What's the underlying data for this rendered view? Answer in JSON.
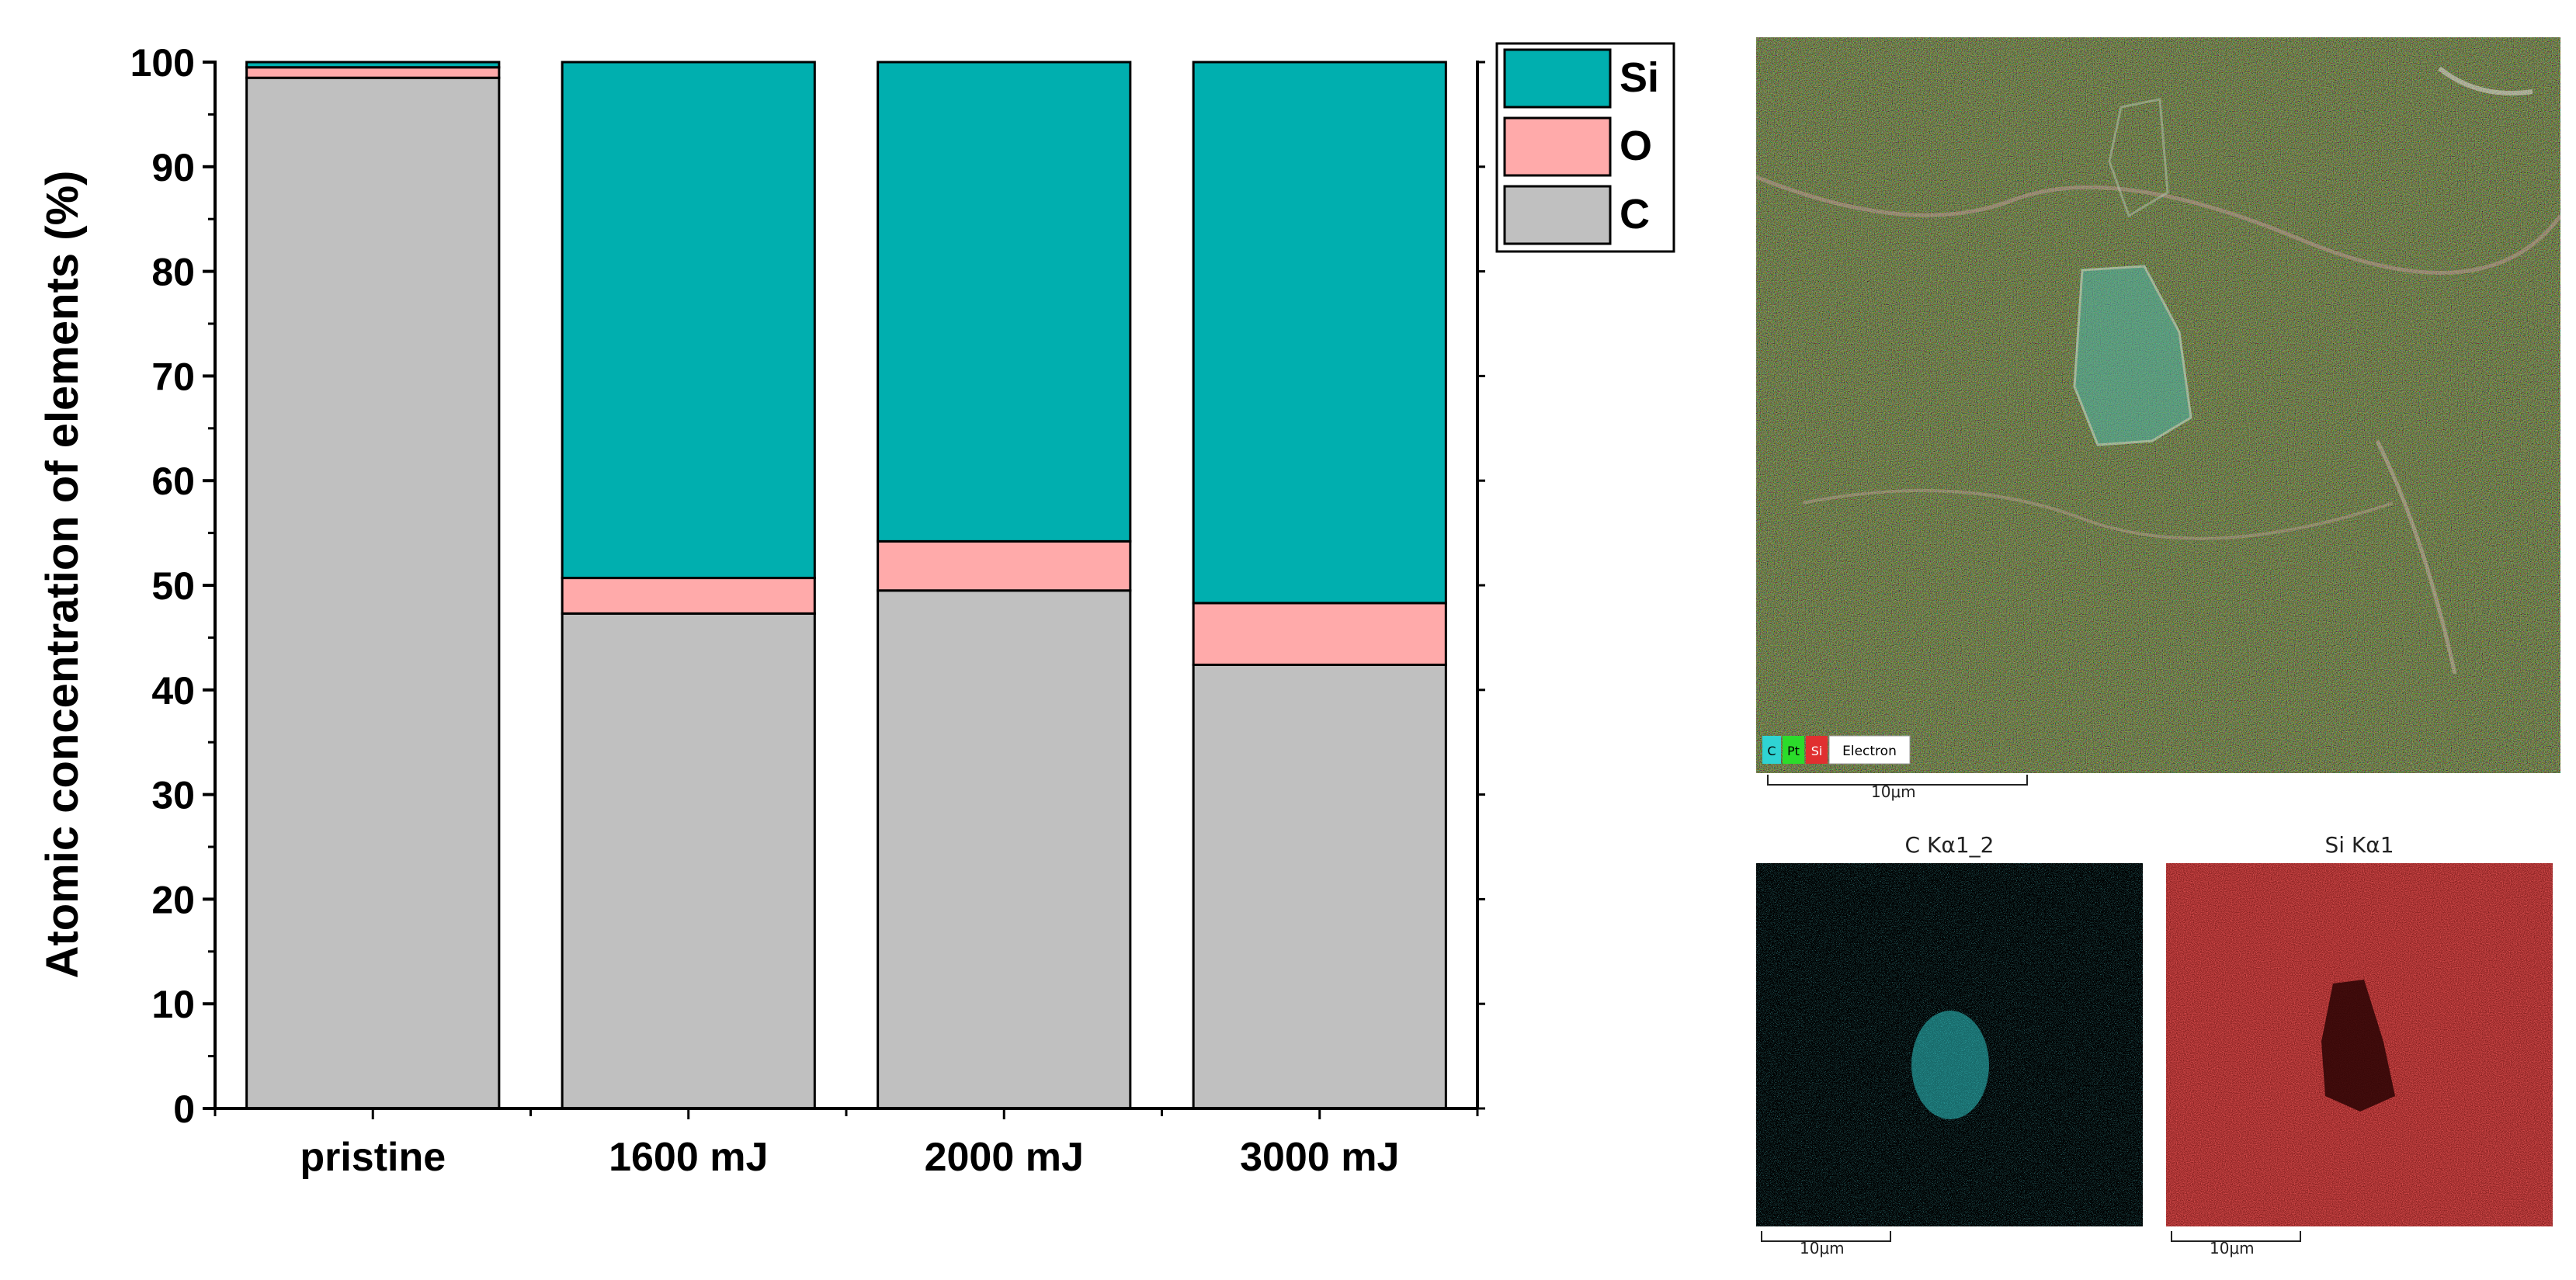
{
  "chart_data": {
    "type": "bar",
    "stacked": true,
    "categories": [
      "pristine",
      "1600 mJ",
      "2000 mJ",
      "3000 mJ"
    ],
    "series": [
      {
        "name": "C",
        "color": "#c0c0c0",
        "values": [
          98.5,
          47.3,
          49.5,
          42.4
        ]
      },
      {
        "name": "O",
        "color": "#ffaaaa",
        "values": [
          1.0,
          3.4,
          4.7,
          5.9
        ]
      },
      {
        "name": "Si",
        "color": "#00afaf",
        "values": [
          0.5,
          49.3,
          45.8,
          51.7
        ]
      }
    ],
    "ylabel": "Atomic concentration of elements (%)",
    "xlabel": "",
    "ylim": [
      0,
      100
    ],
    "yticks": [
      0,
      10,
      20,
      30,
      40,
      50,
      60,
      70,
      80,
      90,
      100
    ],
    "legend_order": [
      "Si",
      "O",
      "C"
    ],
    "legend_position": "top-right"
  },
  "eds": {
    "main_legend": [
      "C",
      "Pt",
      "Si",
      "Electron"
    ],
    "main_scale": "10μm",
    "maps": [
      {
        "title": "C Kα1_2",
        "scale": "10μm",
        "color": "#2fd3d3"
      },
      {
        "title": "Si Kα1",
        "scale": "10μm",
        "color": "#cc1a1a"
      }
    ]
  }
}
